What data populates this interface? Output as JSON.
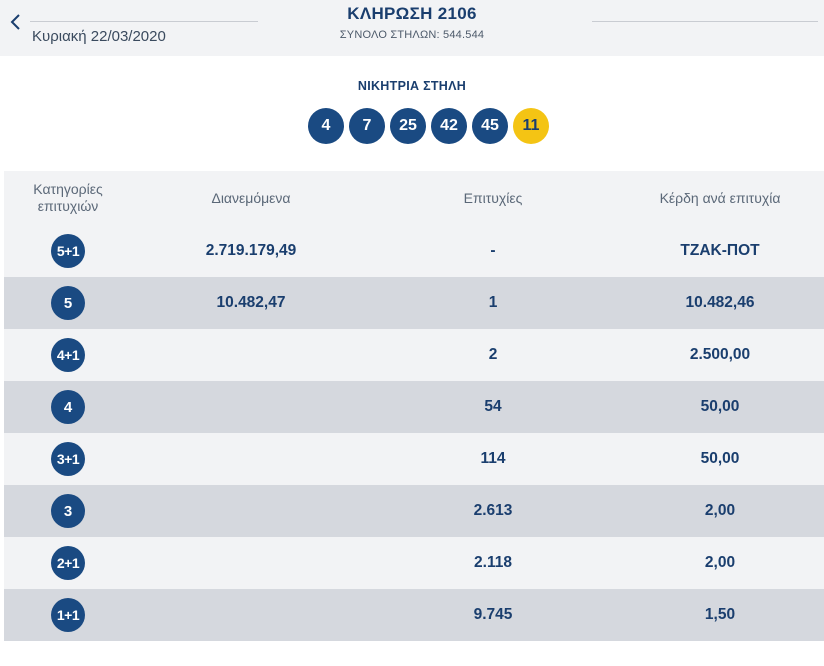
{
  "header": {
    "date": "Κυριακή 22/03/2020",
    "title": "ΚΛΗΡΩΣΗ 2106",
    "columns_total": "ΣΥΝΟΛΟ ΣΤΗΛΩΝ: 544.544"
  },
  "winning": {
    "label": "ΝΙΚΗΤΡΙΑ ΣΤΗΛΗ",
    "numbers": [
      "4",
      "7",
      "25",
      "42",
      "45"
    ],
    "bonus": "11"
  },
  "table": {
    "headers": {
      "category_line1": "Κατηγορίες",
      "category_line2": "επιτυχιών",
      "distributed": "Διανεμόμενα",
      "winners": "Επιτυχίες",
      "prize": "Κέρδη ανά επιτυχία"
    },
    "rows": [
      {
        "category": "5+1",
        "distributed": "2.719.179,49",
        "winners": "-",
        "prize": "ΤΖΑΚ-ΠΟΤ"
      },
      {
        "category": "5",
        "distributed": "10.482,47",
        "winners": "1",
        "prize": "10.482,46"
      },
      {
        "category": "4+1",
        "distributed": "",
        "winners": "2",
        "prize": "2.500,00"
      },
      {
        "category": "4",
        "distributed": "",
        "winners": "54",
        "prize": "50,00"
      },
      {
        "category": "3+1",
        "distributed": "",
        "winners": "114",
        "prize": "50,00"
      },
      {
        "category": "3",
        "distributed": "",
        "winners": "2.613",
        "prize": "2,00"
      },
      {
        "category": "2+1",
        "distributed": "",
        "winners": "2.118",
        "prize": "2,00"
      },
      {
        "category": "1+1",
        "distributed": "",
        "winners": "9.745",
        "prize": "1,50"
      }
    ]
  },
  "colors": {
    "primary": "#1a3e6e",
    "ball": "#1a4a82",
    "bonus_ball": "#f4c414",
    "row_light": "#f2f3f5",
    "row_dark": "#d5d8de"
  }
}
